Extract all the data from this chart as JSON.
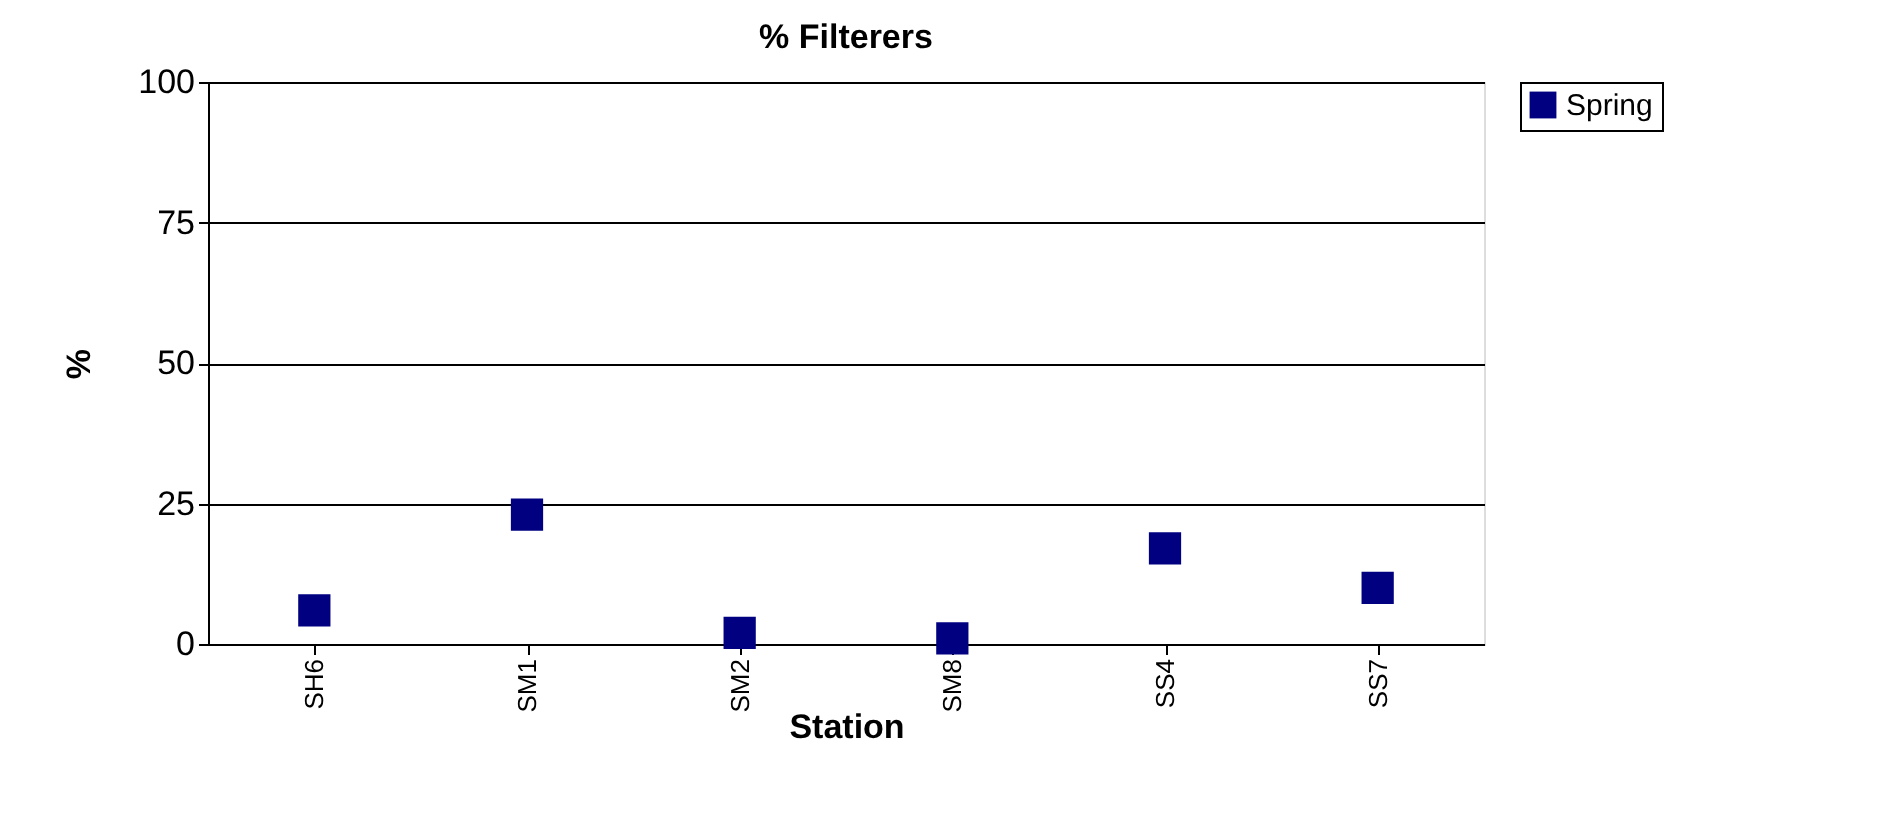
{
  "chart_data": {
    "type": "scatter",
    "title": "% Filterers",
    "xlabel": "Station",
    "ylabel": "%",
    "categories": [
      "SH6",
      "SM1",
      "SM2",
      "SM8",
      "SS4",
      "SS7"
    ],
    "series": [
      {
        "name": "Spring",
        "color": "#000080",
        "values": [
          6,
          23,
          2,
          1,
          17,
          10
        ]
      }
    ],
    "ylim": [
      0,
      100
    ],
    "yticks": [
      0,
      25,
      50,
      75,
      100
    ],
    "grid": "y",
    "legend": "right",
    "marker": "square"
  }
}
